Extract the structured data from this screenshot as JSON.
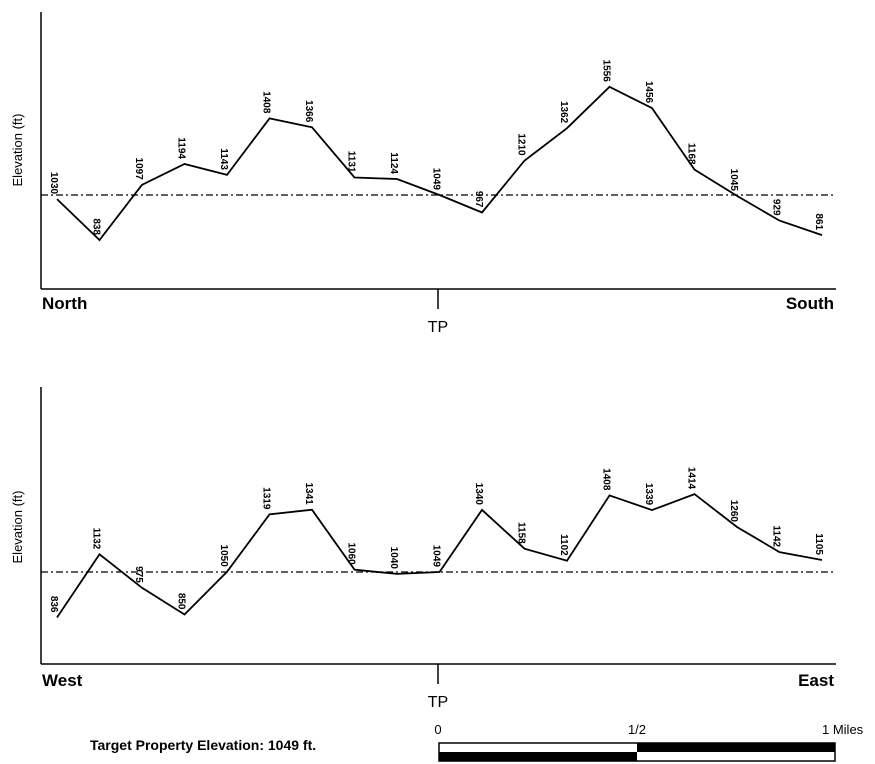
{
  "target_text": "Target Property Elevation: 1049 ft.",
  "target_elevation": 1049,
  "scale_bar": {
    "labels": [
      "0",
      "1/2",
      "1 Miles"
    ]
  },
  "chart_data": [
    {
      "type": "line",
      "ylabel": "Elevation (ft)",
      "left_label": "North",
      "right_label": "South",
      "center_label": "TP",
      "values": [
        1030,
        838,
        1097,
        1194,
        1143,
        1408,
        1366,
        1131,
        1124,
        1049,
        967,
        1210,
        1362,
        1556,
        1456,
        1168,
        1045,
        929,
        861
      ],
      "value_labels": [
        "1030",
        "838",
        "1097",
        "1194",
        "1143",
        "1408",
        "1366",
        "1131",
        "1124",
        "1049",
        "967",
        "1210",
        "1362",
        "1556",
        "1456",
        "1168",
        "1045",
        "929",
        "861"
      ],
      "reference_value": 1049
    },
    {
      "type": "line",
      "ylabel": "Elevation (ft)",
      "left_label": "West",
      "right_label": "East",
      "center_label": "TP",
      "values": [
        836,
        1132,
        975,
        850,
        1050,
        1319,
        1341,
        1060,
        1040,
        1049,
        1340,
        1158,
        1102,
        1408,
        1339,
        1414,
        1260,
        1142,
        1105
      ],
      "value_labels": [
        "836",
        "1132",
        "975",
        "850",
        "1050",
        "1319",
        "1341",
        "1060",
        "1040",
        "1049",
        "1340",
        "1158",
        "1102",
        "1408",
        "1339",
        "1414",
        "1260",
        "1142",
        "1105"
      ],
      "reference_value": 1049
    }
  ]
}
